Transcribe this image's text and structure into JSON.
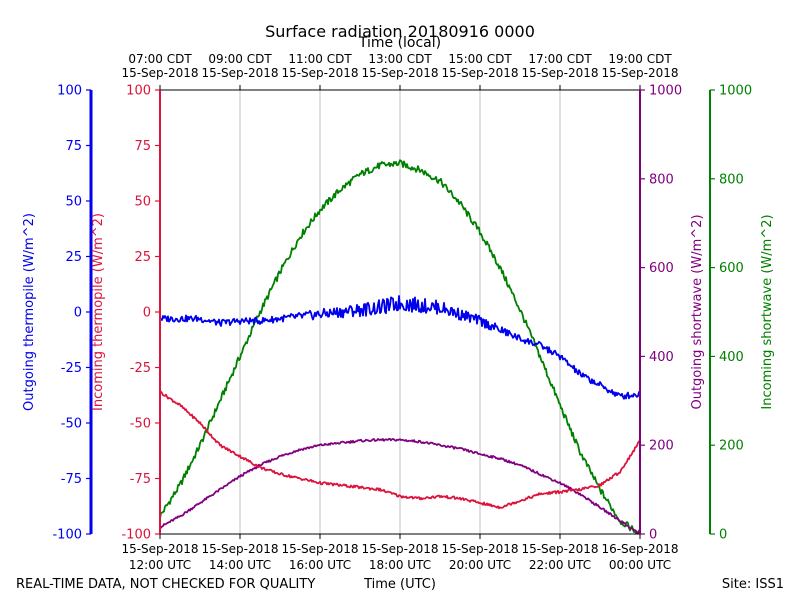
{
  "chart_data": {
    "type": "line",
    "title": "Surface radiation 20180916 0000",
    "top_xlabel": "Time (local)",
    "xlabel": "Time (UTC)",
    "footer_left": "REAL-TIME DATA, NOT CHECKED FOR QUALITY",
    "footer_right": "Site: ISS1",
    "x_range_hours_utc": [
      12,
      24
    ],
    "bottom_ticks": [
      {
        "hour": 12,
        "line1": "15-Sep-2018",
        "line2": "12:00 UTC"
      },
      {
        "hour": 14,
        "line1": "15-Sep-2018",
        "line2": "14:00 UTC"
      },
      {
        "hour": 16,
        "line1": "15-Sep-2018",
        "line2": "16:00 UTC"
      },
      {
        "hour": 18,
        "line1": "15-Sep-2018",
        "line2": "18:00 UTC"
      },
      {
        "hour": 20,
        "line1": "15-Sep-2018",
        "line2": "20:00 UTC"
      },
      {
        "hour": 22,
        "line1": "15-Sep-2018",
        "line2": "22:00 UTC"
      },
      {
        "hour": 24,
        "line1": "16-Sep-2018",
        "line2": "00:00 UTC"
      }
    ],
    "top_ticks": [
      {
        "hour": 12,
        "line1": "07:00 CDT",
        "line2": "15-Sep-2018"
      },
      {
        "hour": 14,
        "line1": "09:00 CDT",
        "line2": "15-Sep-2018"
      },
      {
        "hour": 16,
        "line1": "11:00 CDT",
        "line2": "15-Sep-2018"
      },
      {
        "hour": 18,
        "line1": "13:00 CDT",
        "line2": "15-Sep-2018"
      },
      {
        "hour": 20,
        "line1": "15:00 CDT",
        "line2": "15-Sep-2018"
      },
      {
        "hour": 22,
        "line1": "17:00 CDT",
        "line2": "15-Sep-2018"
      },
      {
        "hour": 24,
        "line1": "19:00 CDT",
        "line2": "15-Sep-2018"
      }
    ],
    "axes": [
      {
        "id": "outgoing_thermopile",
        "label": "Outgoing thermopile (W/m^2)",
        "color": "#0000ee",
        "ylim": [
          -100,
          100
        ],
        "ticks": [
          -100,
          -75,
          -50,
          -25,
          0,
          25,
          50,
          75,
          100
        ]
      },
      {
        "id": "incoming_thermopile",
        "label": "Incoming thermopile (W/m^2)",
        "color": "#dc143c",
        "ylim": [
          -100,
          100
        ],
        "ticks": [
          -100,
          -75,
          -50,
          -25,
          0,
          25,
          50,
          75,
          100
        ]
      },
      {
        "id": "outgoing_shortwave",
        "label": "Outgoing shortwave (W/m^2)",
        "color": "#800080",
        "ylim": [
          0,
          1000
        ],
        "ticks": [
          0,
          200,
          400,
          600,
          800,
          1000
        ]
      },
      {
        "id": "incoming_shortwave",
        "label": "Incoming shortwave (W/m^2)",
        "color": "#008000",
        "ylim": [
          0,
          1000
        ],
        "ticks": [
          0,
          200,
          400,
          600,
          800,
          1000
        ]
      }
    ],
    "series": [
      {
        "name": "Incoming shortwave",
        "axis": "incoming_shortwave",
        "color": "#008000",
        "x": [
          12.0,
          12.5,
          13.0,
          13.5,
          14.0,
          14.5,
          15.0,
          15.5,
          16.0,
          16.5,
          17.0,
          17.5,
          18.0,
          18.5,
          19.0,
          19.5,
          20.0,
          20.5,
          21.0,
          21.5,
          22.0,
          22.5,
          23.0,
          23.5,
          24.0
        ],
        "y": [
          40,
          110,
          200,
          300,
          400,
          500,
          590,
          670,
          730,
          775,
          810,
          830,
          835,
          820,
          795,
          745,
          680,
          600,
          505,
          400,
          290,
          185,
          100,
          30,
          0
        ]
      },
      {
        "name": "Outgoing shortwave",
        "axis": "outgoing_shortwave",
        "color": "#800080",
        "x": [
          12.0,
          12.5,
          13.0,
          13.5,
          14.0,
          14.5,
          15.0,
          15.5,
          16.0,
          16.5,
          17.0,
          17.5,
          18.0,
          18.5,
          19.0,
          19.5,
          20.0,
          20.5,
          21.0,
          21.5,
          22.0,
          22.5,
          23.0,
          23.5,
          24.0
        ],
        "y": [
          15,
          40,
          70,
          100,
          130,
          155,
          175,
          190,
          200,
          205,
          210,
          212,
          212,
          208,
          200,
          192,
          180,
          170,
          155,
          135,
          115,
          90,
          60,
          30,
          0
        ]
      },
      {
        "name": "Outgoing thermopile",
        "axis": "outgoing_thermopile",
        "color": "#0000ee",
        "x": [
          12.0,
          12.5,
          13.0,
          13.5,
          14.0,
          14.5,
          15.0,
          15.5,
          16.0,
          16.5,
          17.0,
          17.5,
          18.0,
          18.5,
          19.0,
          19.5,
          20.0,
          20.5,
          21.0,
          21.5,
          22.0,
          22.5,
          23.0,
          23.5,
          24.0
        ],
        "y": [
          -3,
          -3,
          -3,
          -5,
          -4,
          -4,
          -3,
          -2,
          -1,
          0,
          1,
          2,
          4,
          3,
          2,
          -1,
          -4,
          -8,
          -12,
          -15,
          -20,
          -28,
          -33,
          -38,
          -37
        ]
      },
      {
        "name": "Incoming thermopile",
        "axis": "incoming_thermopile",
        "color": "#dc143c",
        "x": [
          12.0,
          12.5,
          13.0,
          13.5,
          14.0,
          14.5,
          15.0,
          15.5,
          16.0,
          16.5,
          17.0,
          17.5,
          18.0,
          18.5,
          19.0,
          19.5,
          20.0,
          20.5,
          21.0,
          21.5,
          22.0,
          22.5,
          23.0,
          23.5,
          24.0
        ],
        "y": [
          -36,
          -42,
          -50,
          -60,
          -65,
          -70,
          -73,
          -75,
          -77,
          -78,
          -79,
          -80,
          -83,
          -84,
          -83,
          -84,
          -86,
          -88,
          -85,
          -82,
          -81,
          -80,
          -78,
          -72,
          -58
        ]
      }
    ]
  }
}
